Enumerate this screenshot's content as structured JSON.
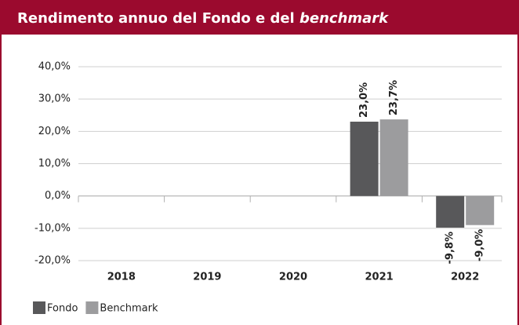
{
  "chart_data": {
    "type": "bar",
    "title_parts": [
      "Rendimento annuo del Fondo e del",
      "benchmark"
    ],
    "categories": [
      "2018",
      "2019",
      "2020",
      "2021",
      "2022"
    ],
    "series": [
      {
        "name": "Fondo",
        "color": "#58585a",
        "values": [
          null,
          null,
          null,
          23.0,
          -9.8
        ],
        "value_labels": [
          null,
          null,
          null,
          "23,0%",
          "-9,8%"
        ]
      },
      {
        "name": "Benchmark",
        "color": "#9c9c9e",
        "values": [
          null,
          null,
          null,
          23.7,
          -9.0
        ],
        "value_labels": [
          null,
          null,
          null,
          "23,7%",
          "-9,0%"
        ]
      }
    ],
    "ylim": [
      -20,
      40
    ],
    "yticks": [
      {
        "value": -20,
        "label": "-20,0%"
      },
      {
        "value": -10,
        "label": "-10,0%"
      },
      {
        "value": 0,
        "label": "0,0%"
      },
      {
        "value": 10,
        "label": "10,0%"
      },
      {
        "value": 20,
        "label": "20,0%"
      },
      {
        "value": 30,
        "label": "30,0%"
      },
      {
        "value": 40,
        "label": "40,0%"
      }
    ],
    "grid": true,
    "header_color": "#9b0a2e"
  }
}
